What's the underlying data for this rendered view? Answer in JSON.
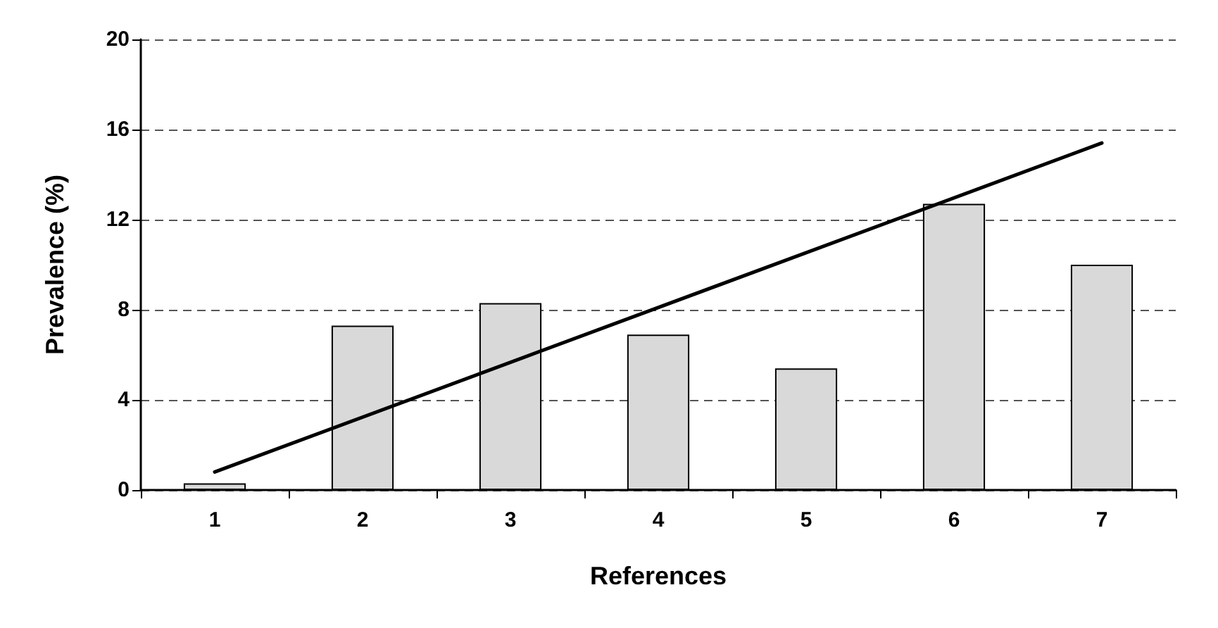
{
  "chart_data": {
    "type": "bar",
    "xlabel": "References",
    "ylabel": "Prevalence (%)",
    "categories": [
      "1",
      "2",
      "3",
      "4",
      "5",
      "6",
      "7"
    ],
    "series": [
      {
        "color": "#d9d9d9",
        "values": [
          0.3,
          7.3,
          8.3,
          6.9,
          5.4,
          12.7,
          10.0
        ]
      },
      {
        "type": "line",
        "color": "#000000",
        "x": [
          "1",
          "7"
        ],
        "values": [
          0.8,
          15.4
        ]
      }
    ],
    "ylim": [
      0,
      20
    ],
    "yticks": [
      0,
      4,
      8,
      12,
      16,
      20
    ],
    "grid": "y",
    "marker": "none",
    "line_style": "solid"
  }
}
